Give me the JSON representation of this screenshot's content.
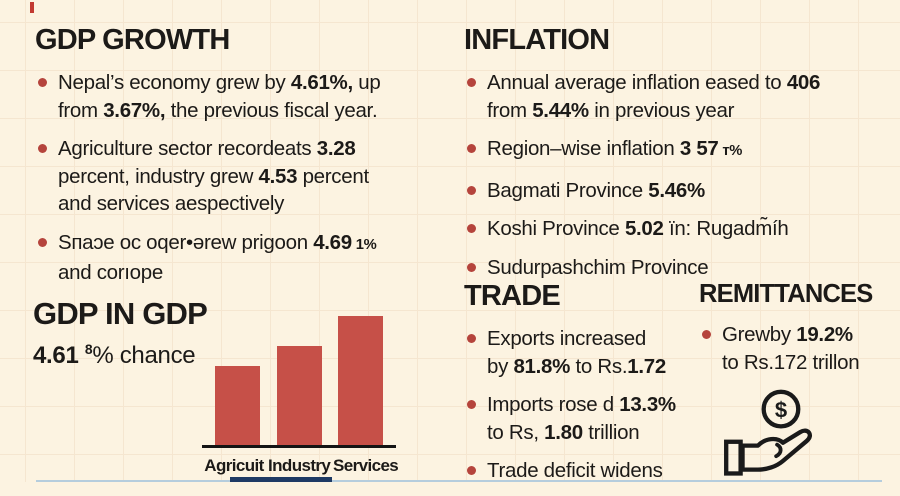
{
  "theme": {
    "background": "#fcf3e1",
    "grid_line": "#f0ddc3",
    "text": "#1c1a18",
    "bullet": "#b5443c",
    "accent_red": "#c65048",
    "bottom_bar_navy": "#1e3a64",
    "bottom_hairline_blue": "#b5cddd",
    "top_tick_red": "#c23a31"
  },
  "sections": {
    "gdp_growth": {
      "title": "GDP GROWTH",
      "bullets": [
        {
          "segments": [
            {
              "t": "Nepal’s economy grew by "
            },
            {
              "t": "4.61%,",
              "b": true
            },
            {
              "t": " up"
            },
            {
              "br": true
            },
            {
              "t": "from "
            },
            {
              "t": "3.67%,",
              "b": true
            },
            {
              "t": " the previous fiscal year."
            }
          ]
        },
        {
          "segments": [
            {
              "t": "Agriculture sector recordeats "
            },
            {
              "t": "3.28",
              "b": true
            },
            {
              "br": true
            },
            {
              "t": "percent, industry grew "
            },
            {
              "t": "4.53",
              "b": true
            },
            {
              "t": " percent"
            },
            {
              "br": true
            },
            {
              "t": "and services aespectively"
            }
          ]
        },
        {
          "segments": [
            {
              "t": "Sпaɔe oс oqer•ərew prigoon "
            },
            {
              "t": "4.69",
              "b": true
            },
            {
              "t": " 1%",
              "small": true
            },
            {
              "br": true
            },
            {
              "t": "and corıope"
            }
          ]
        }
      ]
    },
    "inflation": {
      "title": "INFLATION",
      "bullets": [
        {
          "segments": [
            {
              "t": "Annual average inflation eased to "
            },
            {
              "t": "406",
              "b": true
            },
            {
              "br": true
            },
            {
              "t": "from "
            },
            {
              "t": "5.44%",
              "b": true
            },
            {
              "t": " in previous year"
            }
          ]
        },
        {
          "segments": [
            {
              "t": "Region–wise inflation "
            },
            {
              "t": "3 57",
              "b": true
            },
            {
              "t": " т%",
              "small": true
            }
          ]
        },
        {
          "segments": [
            {
              "t": "Bagmati Province "
            },
            {
              "t": "5.46%",
              "b": true
            }
          ]
        },
        {
          "segments": [
            {
              "t": "Koshi Province "
            },
            {
              "t": "5.02",
              "b": true
            },
            {
              "t": " ïn:  Rugadm̃íh"
            }
          ]
        },
        {
          "segments": [
            {
              "t": "Sudurpashchim Province"
            }
          ]
        }
      ]
    },
    "gdp_in_gdp": {
      "title": "GDP IN GDP",
      "subtitle_segments": [
        {
          "t": "4.61",
          "b": true
        },
        {
          "t": " "
        },
        {
          "t": "8",
          "sup": true
        },
        {
          "t": "%  chance"
        }
      ]
    },
    "trade": {
      "title": "TRADE",
      "bullets": [
        {
          "segments": [
            {
              "t": "Exports increased"
            },
            {
              "br": true
            },
            {
              "t": "by "
            },
            {
              "t": "81.8%",
              "b": true
            },
            {
              "t": " to Rs."
            },
            {
              "t": "1.72",
              "b": true
            }
          ]
        },
        {
          "segments": [
            {
              "t": "Imports rose d "
            },
            {
              "t": "13.3%",
              "b": true
            },
            {
              "br": true
            },
            {
              "t": "to Rs, "
            },
            {
              "t": "1.80",
              "b": true
            },
            {
              "t": " trillion"
            }
          ]
        },
        {
          "segments": [
            {
              "t": "Trade deficit widens"
            }
          ]
        }
      ]
    },
    "remittances": {
      "title": "REMITTANCES",
      "bullets": [
        {
          "segments": [
            {
              "t": "Grewby "
            },
            {
              "t": "19.2%",
              "b": true
            },
            {
              "br": true
            },
            {
              "t": "to Rs.172 trillon"
            }
          ]
        }
      ],
      "coin_symbol": "$"
    }
  },
  "chart_data": {
    "type": "bar",
    "title": "GDP IN GDP",
    "categories": [
      "Agricuit",
      "Industry",
      "Services"
    ],
    "values": [
      61,
      77,
      100
    ],
    "value_scale": "relative bar height, no value axis shown",
    "bar_color": "#c65048",
    "xlabel": "",
    "ylabel": "",
    "grid": false,
    "legend": false
  }
}
